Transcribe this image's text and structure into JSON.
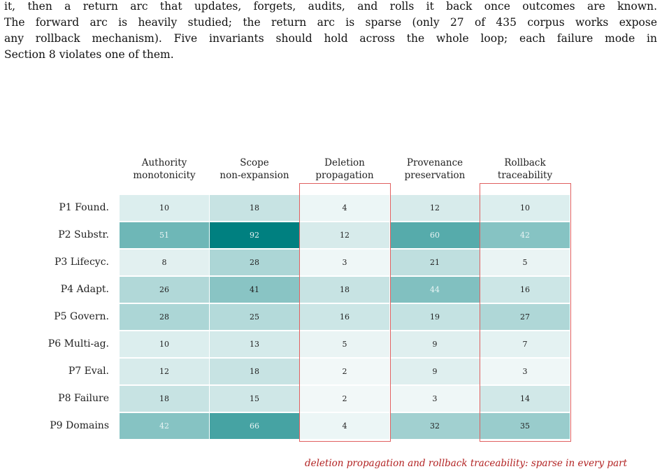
{
  "paragraph": {
    "lines": [
      "it, then a return arc that updates, forgets, audits, and rolls it back once outcomes are known.",
      "The forward arc is heavily studied; the return arc is sparse (only 27 of 435 corpus works expose",
      "any rollback mechanism). Five invariants should hold across the whole loop; each failure mode in",
      "Section 8 violates one of them."
    ]
  },
  "chart_data": {
    "type": "heatmap",
    "columns": [
      {
        "line1": "Authority",
        "line2": "monotonicity"
      },
      {
        "line1": "Scope",
        "line2": "non-expansion"
      },
      {
        "line1": "Deletion",
        "line2": "propagation"
      },
      {
        "line1": "Provenance",
        "line2": "preservation"
      },
      {
        "line1": "Rollback",
        "line2": "traceability"
      }
    ],
    "rows": [
      "P1 Found.",
      "P2 Substr.",
      "P3 Lifecyc.",
      "P4 Adapt.",
      "P5 Govern.",
      "P6 Multi-ag.",
      "P7 Eval.",
      "P8 Failure",
      "P9 Domains"
    ],
    "values": [
      [
        10,
        18,
        4,
        12,
        10
      ],
      [
        51,
        92,
        12,
        60,
        42
      ],
      [
        8,
        28,
        3,
        21,
        5
      ],
      [
        26,
        41,
        18,
        44,
        16
      ],
      [
        28,
        25,
        16,
        19,
        27
      ],
      [
        10,
        13,
        5,
        9,
        7
      ],
      [
        12,
        18,
        2,
        9,
        3
      ],
      [
        18,
        15,
        2,
        3,
        14
      ],
      [
        42,
        66,
        4,
        32,
        35
      ]
    ],
    "value_range": [
      0,
      92
    ],
    "highlighted_columns": [
      2,
      4
    ],
    "highlight_color": "#e06060",
    "color_low": "#f7fbfb",
    "color_high": "#008080",
    "caption": "deletion propagation and rollback traceability: sparse in every part"
  }
}
